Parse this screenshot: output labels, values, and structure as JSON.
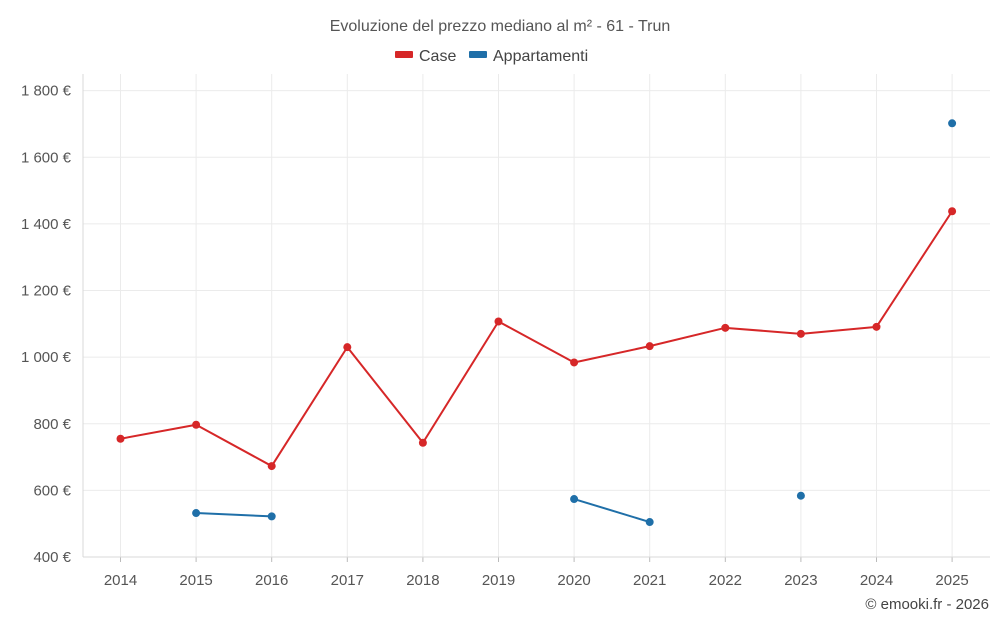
{
  "chart_data": {
    "type": "line",
    "title": "Evoluzione del prezzo mediano al m² - 61 - Trun",
    "categories": [
      "2014",
      "2015",
      "2016",
      "2017",
      "2018",
      "2019",
      "2020",
      "2021",
      "2022",
      "2023",
      "2024",
      "2025"
    ],
    "y_ticks": [
      400,
      600,
      800,
      1000,
      1200,
      1400,
      1600,
      1800
    ],
    "y_tick_labels": [
      "400 €",
      "600 €",
      "800 €",
      "1 000 €",
      "1 200 €",
      "1 400 €",
      "1 600 €",
      "1 800 €"
    ],
    "ylim": [
      400,
      1850
    ],
    "grid": true,
    "legend_position": "top-center",
    "series": [
      {
        "name": "Case",
        "color": "#d62728",
        "values": [
          755,
          797,
          673,
          1030,
          743,
          1107,
          984,
          1033,
          1088,
          1070,
          1091,
          1438
        ]
      },
      {
        "name": "Appartamenti",
        "color": "#1f6fa8",
        "values": [
          null,
          532,
          522,
          null,
          null,
          null,
          574,
          505,
          null,
          584,
          null,
          1702
        ]
      }
    ],
    "credit": "© emooki.fr - 2026"
  }
}
